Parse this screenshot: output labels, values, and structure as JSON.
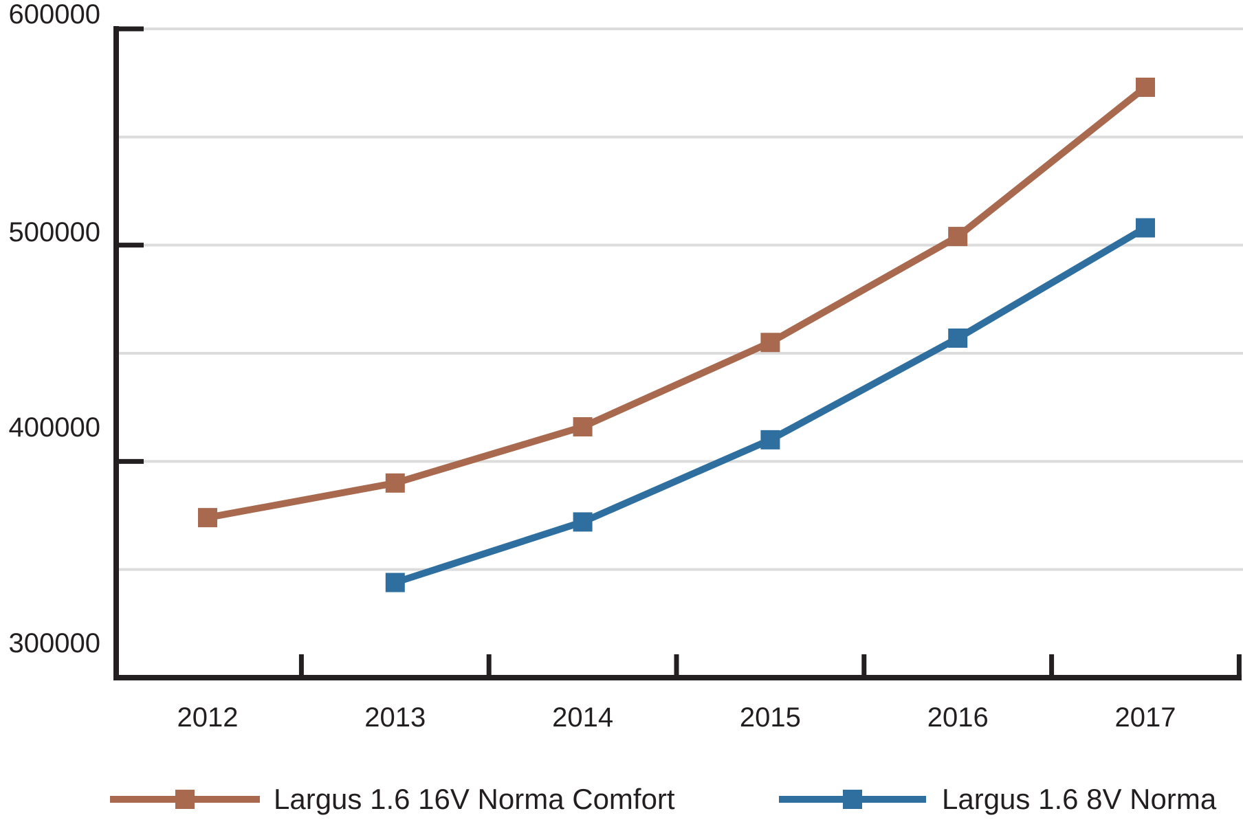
{
  "chart_data": {
    "type": "line",
    "title": "",
    "xlabel": "",
    "ylabel": "",
    "categories": [
      "2012",
      "2013",
      "2014",
      "2015",
      "2016",
      "2017"
    ],
    "series": [
      {
        "name": "Largus 1.6 16V Norma Comfort",
        "color": "#a8694e",
        "marker": "square",
        "values": [
          374000,
          390000,
          416000,
          455000,
          504000,
          573000
        ]
      },
      {
        "name": "Largus 1.6 8V Norma",
        "color": "#2e6f9f",
        "marker": "square",
        "values": [
          null,
          344000,
          372000,
          410000,
          457000,
          508000
        ]
      }
    ],
    "ylim": [
      300000,
      600000
    ],
    "yticks": [
      {
        "value": 600000,
        "label": "600000"
      },
      {
        "value": 500000,
        "label": "500000"
      },
      {
        "value": 400000,
        "label": "400000"
      },
      {
        "value": 300000,
        "label": "300000"
      }
    ],
    "gridline_step": 50000,
    "grid": "horizontal",
    "legend_position": "bottom",
    "colors": {
      "axis": "#231f20",
      "text": "#231f20",
      "gridline": "#dcdcdc",
      "background": "#ffffff"
    }
  }
}
